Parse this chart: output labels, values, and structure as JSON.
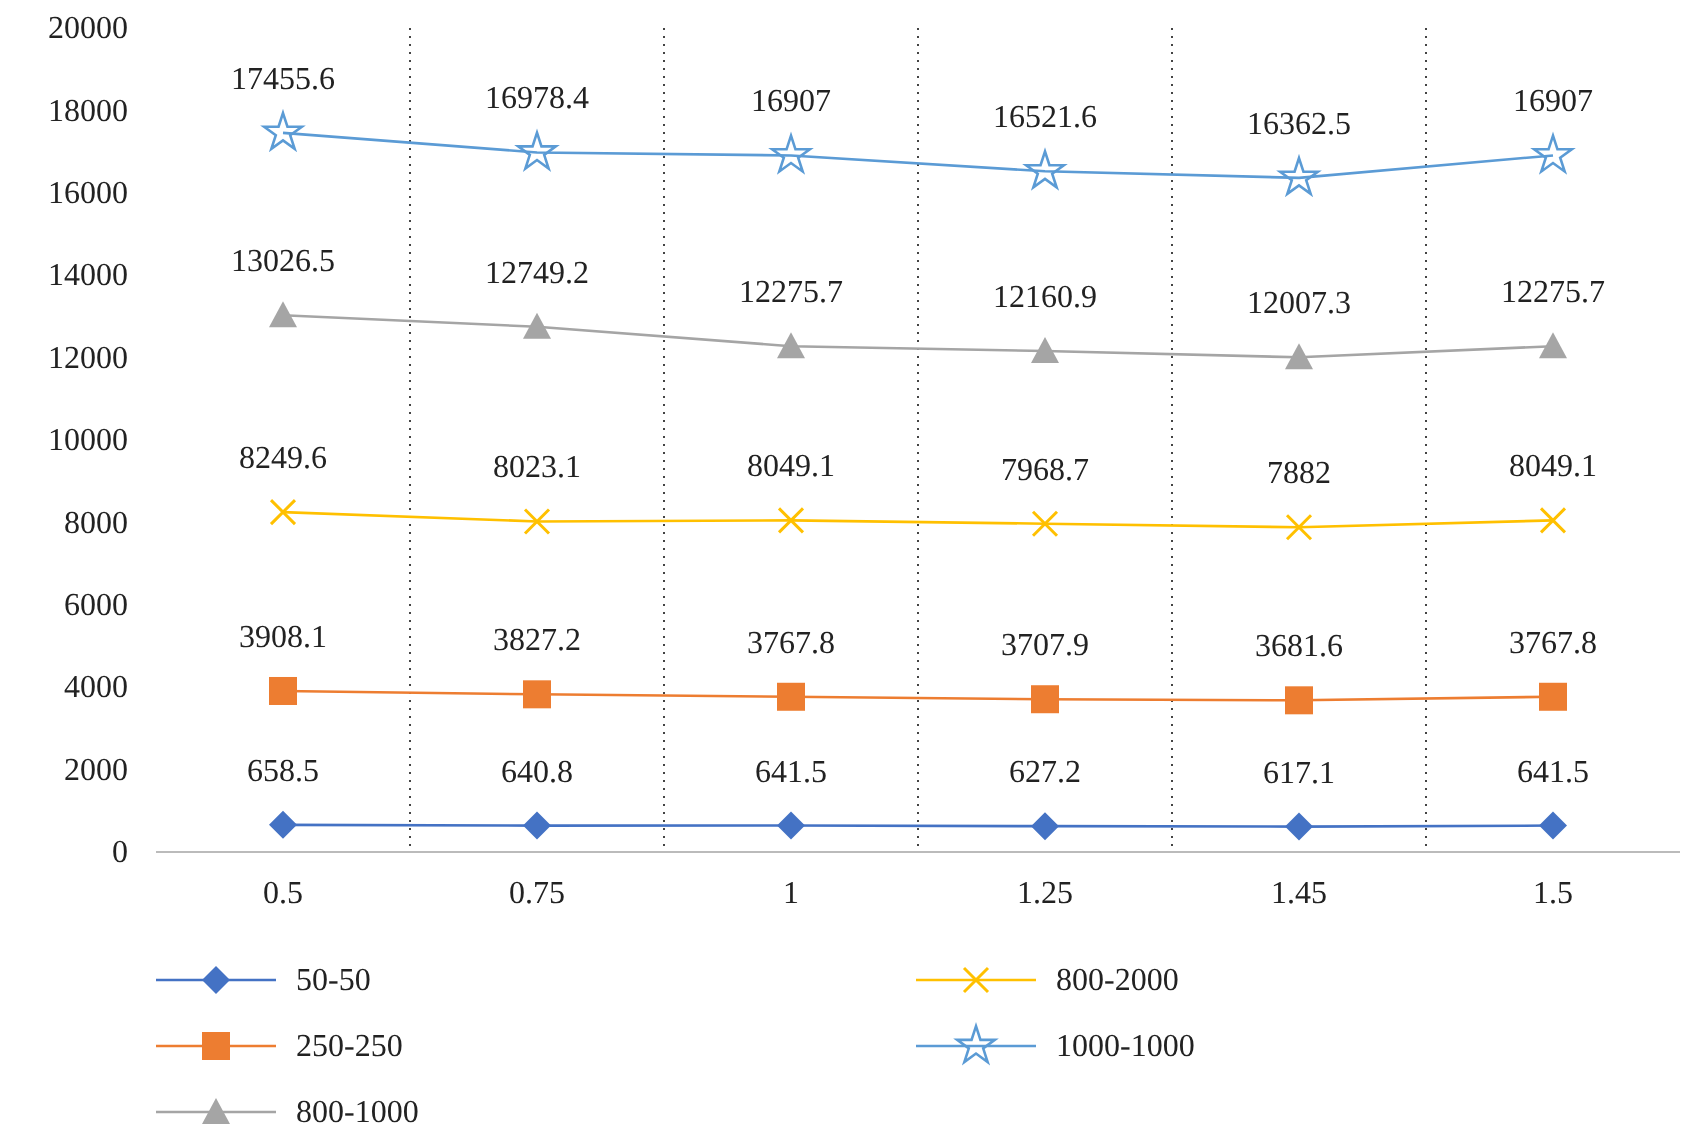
{
  "chart_data": {
    "type": "line",
    "categories": [
      "0.5",
      "0.75",
      "1",
      "1.25",
      "1.45",
      "1.5"
    ],
    "series": [
      {
        "name": "50-50",
        "color": "#4472c4",
        "marker": "diamond",
        "values": [
          658.5,
          640.8,
          641.5,
          627.2,
          617.1,
          641.5
        ]
      },
      {
        "name": "250-250",
        "color": "#ed7d31",
        "marker": "square",
        "values": [
          3908.1,
          3827.2,
          3767.8,
          3707.9,
          3681.6,
          3767.8
        ]
      },
      {
        "name": "800-1000",
        "color": "#a5a5a5",
        "marker": "triangle",
        "values": [
          13026.5,
          12749.2,
          12275.7,
          12160.9,
          12007.3,
          12275.7
        ]
      },
      {
        "name": "800-2000",
        "color": "#ffc000",
        "marker": "cross",
        "values": [
          8249.6,
          8023.1,
          8049.1,
          7968.7,
          7882,
          8049.1
        ]
      },
      {
        "name": "1000-1000",
        "color": "#5b9bd5",
        "marker": "star",
        "values": [
          17455.6,
          16978.4,
          16907,
          16521.6,
          16362.5,
          16907
        ]
      }
    ],
    "ylim": [
      0,
      20000
    ],
    "yticks": [
      0,
      2000,
      4000,
      6000,
      8000,
      10000,
      12000,
      14000,
      16000,
      18000,
      20000
    ],
    "grid": "x",
    "legend": "bottom",
    "data_labels": true
  }
}
